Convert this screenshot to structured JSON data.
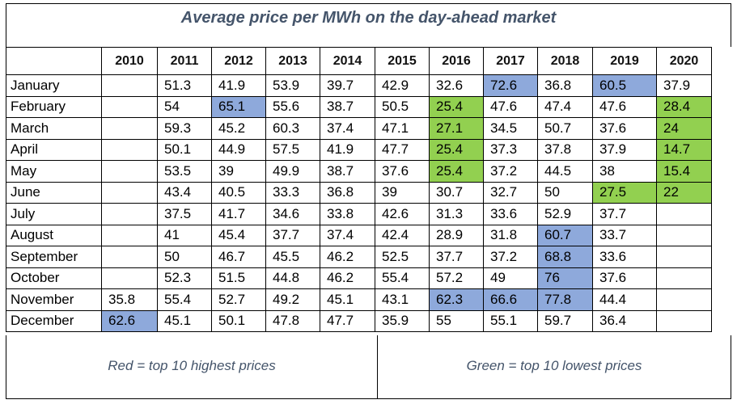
{
  "title": "Average price per MWh on the day-ahead market",
  "years": [
    "2010",
    "2011",
    "2012",
    "2013",
    "2014",
    "2015",
    "2016",
    "2017",
    "2018",
    "2019",
    "2020"
  ],
  "rows": [
    {
      "month": "January",
      "values": [
        "",
        "51.3",
        "41.9",
        "53.9",
        "39.7",
        "42.9",
        "32.6",
        "72.6",
        "36.8",
        "60.5",
        "37.9"
      ],
      "hi": [
        7,
        9
      ],
      "lo": []
    },
    {
      "month": "February",
      "values": [
        "",
        "54",
        "65.1",
        "55.6",
        "38.7",
        "50.5",
        "25.4",
        "47.6",
        "47.4",
        "47.6",
        "28.4"
      ],
      "hi": [
        2
      ],
      "lo": [
        6,
        10
      ]
    },
    {
      "month": "March",
      "values": [
        "",
        "59.3",
        "45.2",
        "60.3",
        "37.4",
        "47.1",
        "27.1",
        "34.5",
        "50.7",
        "37.6",
        "24"
      ],
      "hi": [],
      "lo": [
        6,
        10
      ]
    },
    {
      "month": "April",
      "values": [
        "",
        "50.1",
        "44.9",
        "57.5",
        "41.9",
        "47.7",
        "25.4",
        "37.3",
        "37.8",
        "37.9",
        "14.7"
      ],
      "hi": [],
      "lo": [
        6,
        10
      ]
    },
    {
      "month": "May",
      "values": [
        "",
        "53.5",
        "39",
        "49.9",
        "38.7",
        "37.6",
        "25.4",
        "37.2",
        "44.5",
        "38",
        "15.4"
      ],
      "hi": [],
      "lo": [
        6,
        10
      ]
    },
    {
      "month": "June",
      "values": [
        "",
        "43.4",
        "40.5",
        "33.3",
        "36.8",
        "39",
        "30.7",
        "32.7",
        "50",
        "27.5",
        "22"
      ],
      "hi": [],
      "lo": [
        9,
        10
      ]
    },
    {
      "month": "July",
      "values": [
        "",
        "37.5",
        "41.7",
        "34.6",
        "33.8",
        "42.6",
        "31.3",
        "33.6",
        "52.9",
        "37.7",
        ""
      ],
      "hi": [],
      "lo": []
    },
    {
      "month": "August",
      "values": [
        "",
        "41",
        "45.4",
        "37.7",
        "37.4",
        "42.4",
        "28.9",
        "31.8",
        "60.7",
        "33.7",
        ""
      ],
      "hi": [
        8
      ],
      "lo": []
    },
    {
      "month": "September",
      "values": [
        "",
        "50",
        "46.7",
        "45.5",
        "46.2",
        "52.5",
        "37.7",
        "37.2",
        "68.8",
        "33.6",
        ""
      ],
      "hi": [
        8
      ],
      "lo": []
    },
    {
      "month": "October",
      "values": [
        "",
        "52.3",
        "51.5",
        "44.8",
        "46.2",
        "55.4",
        "57.2",
        "49",
        "76",
        "37.6",
        ""
      ],
      "hi": [
        8
      ],
      "lo": []
    },
    {
      "month": "November",
      "values": [
        "35.8",
        "55.4",
        "52.7",
        "49.2",
        "45.1",
        "43.1",
        "62.3",
        "66.6",
        "77.8",
        "44.4",
        ""
      ],
      "hi": [
        6,
        7,
        8
      ],
      "lo": []
    },
    {
      "month": "December",
      "values": [
        "62.6",
        "45.1",
        "50.1",
        "47.8",
        "47.7",
        "35.9",
        "55",
        "55.1",
        "59.7",
        "36.4",
        ""
      ],
      "hi": [
        0
      ],
      "lo": []
    }
  ],
  "legend": {
    "left": "Red = top 10 highest prices",
    "right": "Green = top 10 lowest prices"
  },
  "colors": {
    "highlight_high": "#8ea9db",
    "highlight_low": "#92d050",
    "title_text": "#44546a"
  }
}
